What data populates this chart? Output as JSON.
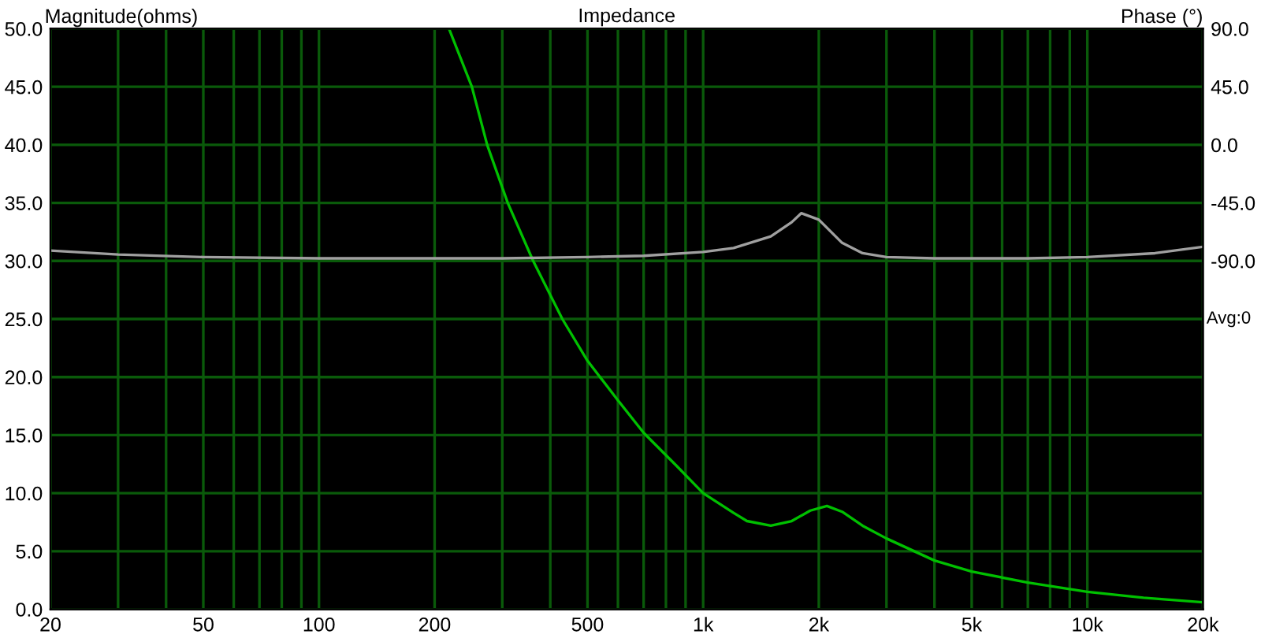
{
  "chart_data": {
    "type": "line",
    "title": "Impedance",
    "ylabel": "Magnitude(ohms)",
    "y2label": "Phase (°)",
    "annotations": [
      "Avg:0"
    ],
    "log": "x",
    "grid": true,
    "legend": false,
    "marker": "none",
    "line_style": "solid",
    "xlim": [
      20,
      20000
    ],
    "xticks": [
      20,
      {
        "value": 30,
        "label": null
      },
      {
        "value": 40,
        "label": null
      },
      50,
      {
        "value": 60,
        "label": null
      },
      {
        "value": 70,
        "label": null
      },
      {
        "value": 80,
        "label": null
      },
      {
        "value": 90,
        "label": null
      },
      100,
      200,
      {
        "value": 300,
        "label": null
      },
      {
        "value": 400,
        "label": null
      },
      500,
      {
        "value": 600,
        "label": null
      },
      {
        "value": 700,
        "label": null
      },
      {
        "value": 800,
        "label": null
      },
      {
        "value": 900,
        "label": null
      },
      {
        "value": 1000,
        "label": "1k"
      },
      {
        "value": 2000,
        "label": "2k"
      },
      {
        "value": 3000,
        "label": null
      },
      {
        "value": 4000,
        "label": null
      },
      {
        "value": 5000,
        "label": "5k"
      },
      {
        "value": 6000,
        "label": null
      },
      {
        "value": 7000,
        "label": null
      },
      {
        "value": 8000,
        "label": null
      },
      {
        "value": 9000,
        "label": null
      },
      {
        "value": 10000,
        "label": "10k"
      },
      {
        "value": 20000,
        "label": "20k"
      }
    ],
    "ylim": [
      0,
      50
    ],
    "yticks": [
      {
        "value": 0,
        "label": "0.0"
      },
      {
        "value": 5,
        "label": "5.0"
      },
      {
        "value": 10,
        "label": "10.0"
      },
      {
        "value": 15,
        "label": "15.0"
      },
      {
        "value": 20,
        "label": "20.0"
      },
      {
        "value": 25,
        "label": "25.0"
      },
      {
        "value": 30,
        "label": "30.0"
      },
      {
        "value": 35,
        "label": "35.0"
      },
      {
        "value": 40,
        "label": "40.0"
      },
      {
        "value": 45,
        "label": "45.0"
      },
      {
        "value": 50,
        "label": "50.0"
      }
    ],
    "y2lim": [
      -360,
      90
    ],
    "y2ticks": [
      {
        "value": 90,
        "label": "90.0"
      },
      {
        "value": 45,
        "label": "45.0"
      },
      {
        "value": 0,
        "label": "0.0"
      },
      {
        "value": -45,
        "label": "-45.0"
      },
      {
        "value": -90,
        "label": "-90.0"
      }
    ],
    "series": [
      {
        "color": "#00c000",
        "x": [
          218,
          250,
          274,
          310,
          361,
          430,
          500,
          600,
          700,
          850,
          1000,
          1200,
          1300,
          1500,
          1700,
          1900,
          2100,
          2300,
          2600,
          3000,
          4000,
          5000,
          7000,
          10000,
          14000,
          20000
        ],
        "values": [
          50,
          45,
          40,
          35,
          30,
          25,
          21.4,
          18,
          15.2,
          12.4,
          10,
          8.3,
          7.6,
          7.2,
          7.6,
          8.5,
          8.9,
          8.4,
          7.2,
          6.1,
          4.2,
          3.25,
          2.3,
          1.5,
          1.0,
          0.6
        ]
      },
      {
        "color": "#a0a0a0",
        "axis": "y2",
        "x": [
          20,
          30,
          50,
          100,
          200,
          300,
          500,
          700,
          1000,
          1200,
          1500,
          1700,
          1800,
          2000,
          2300,
          2600,
          3000,
          4000,
          5000,
          7000,
          10000,
          15000,
          20000
        ],
        "values": [
          -82,
          -85,
          -87,
          -88,
          -88,
          -88,
          -87,
          -86,
          -83,
          -80,
          -71,
          -60,
          -53,
          -58,
          -76,
          -84,
          -87,
          -88,
          -88,
          -88,
          -87,
          -84,
          -79
        ]
      }
    ]
  }
}
